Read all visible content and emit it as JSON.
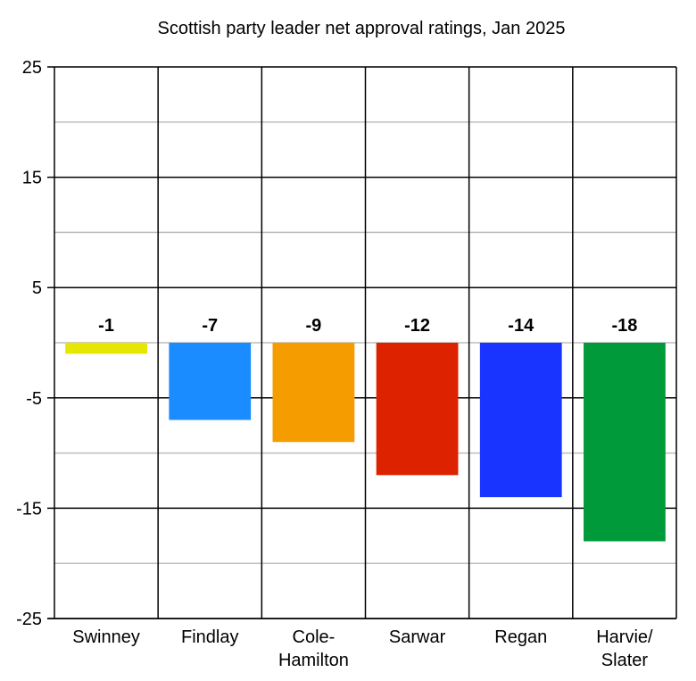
{
  "chart_data": {
    "type": "bar",
    "title": "Scottish party leader net approval ratings, Jan 2025",
    "xlabel": "",
    "ylabel": "",
    "ylim": [
      -25,
      25
    ],
    "yticks": [
      25,
      15,
      5,
      -5,
      -15,
      -25
    ],
    "minor_gridlines": [
      20,
      10,
      0,
      -10,
      -20
    ],
    "grid": true,
    "categories": [
      [
        "Swinney"
      ],
      [
        "Findlay"
      ],
      [
        "Cole-",
        "Hamilton"
      ],
      [
        "Sarwar"
      ],
      [
        "Regan"
      ],
      [
        "Harvie/",
        "Slater"
      ]
    ],
    "values": [
      -1,
      -7,
      -9,
      -12,
      -14,
      -18
    ],
    "data_labels": [
      "-1",
      "-7",
      "-9",
      "-12",
      "-14",
      "-18"
    ],
    "colors": [
      "#e6e600",
      "#1a8cff",
      "#f59c00",
      "#dd2200",
      "#1a34ff",
      "#009a3a"
    ],
    "legend": "none"
  }
}
